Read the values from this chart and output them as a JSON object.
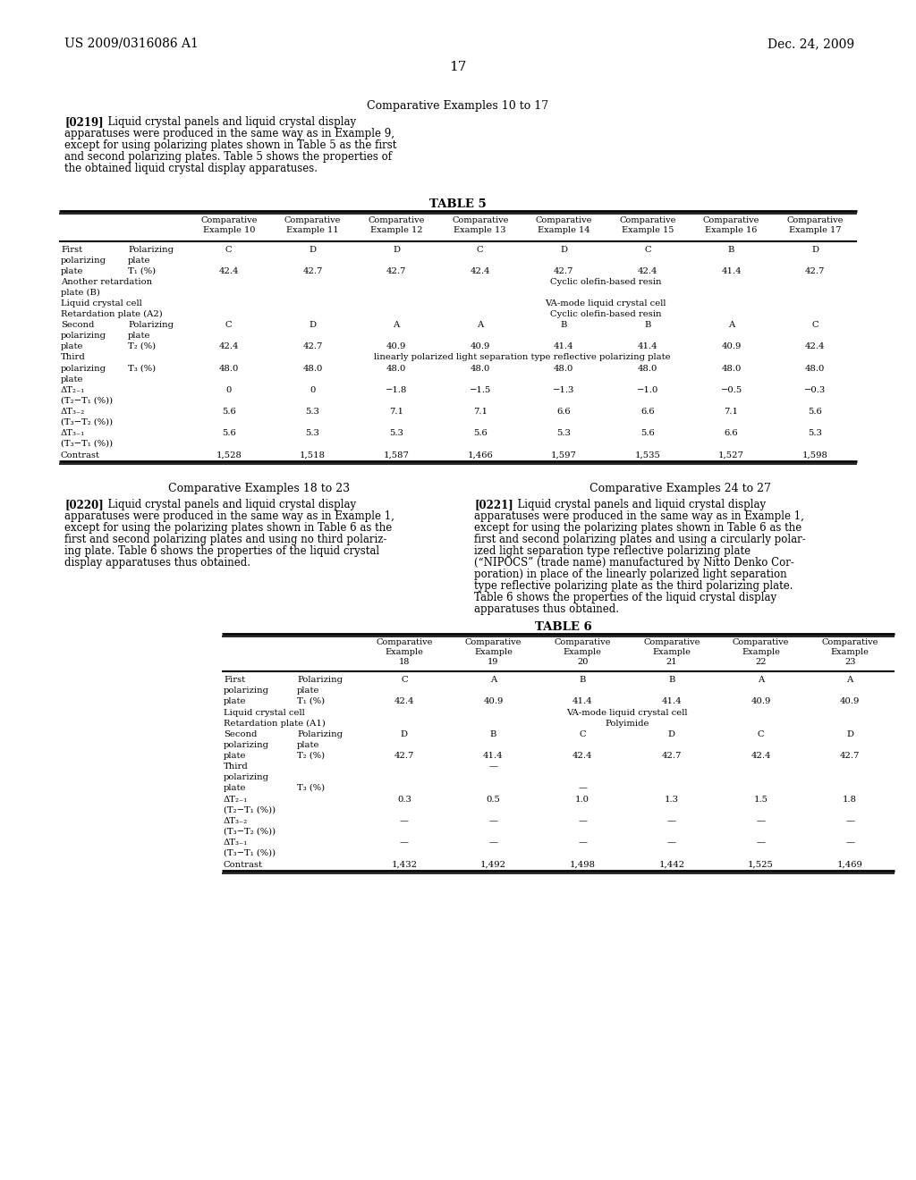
{
  "page_header_left": "US 2009/0316086 A1",
  "page_header_right": "Dec. 24, 2009",
  "page_number": "17",
  "section1_title": "Comparative Examples 10 to 17",
  "section1_para_tag": "[0219]",
  "section1_para_body": "  Liquid crystal panels and liquid crystal display\napparatuses were produced in the same way as in Example 9,\nexcept for using polarizing plates shown in Table 5 as the first\nand second polarizing plates. Table 5 shows the properties of\nthe obtained liquid crystal display apparatuses.",
  "table5_title": "TABLE 5",
  "table5_col_headers": [
    "",
    "",
    "Comparative\nExample 10",
    "Comparative\nExample 11",
    "Comparative\nExample 12",
    "Comparative\nExample 13",
    "Comparative\nExample 14",
    "Comparative\nExample 15",
    "Comparative\nExample 16",
    "Comparative\nExample 17"
  ],
  "section2_title_left": "Comparative Examples 18 to 23",
  "section2_title_right": "Comparative Examples 24 to 27",
  "section2_para_left_tag": "[0220]",
  "section2_para_left_body": "  Liquid crystal panels and liquid crystal display\napparatuses were produced in the same way as in Example 1,\nexcept for using the polarizing plates shown in Table 6 as the\nfirst and second polarizing plates and using no third polariz-\ning plate. Table 6 shows the properties of the liquid crystal\ndisplay apparatuses thus obtained.",
  "section2_para_right_tag": "[0221]",
  "section2_para_right_body": "  Liquid crystal panels and liquid crystal display\napparatuses were produced in the same way as in Example 1,\nexcept for using the polarizing plates shown in Table 6 as the\nfirst and second polarizing plates and using a circularly polar-\nized light separation type reflective polarizing plate\n(“NIPOCS” (trade name) manufactured by Nitto Denko Cor-\nporation) in place of the linearly polarized light separation\ntype reflective polarizing plate as the third polarizing plate.\nTable 6 shows the properties of the liquid crystal display\napparatuses thus obtained.",
  "table6_title": "TABLE 6",
  "table6_col_headers": [
    "",
    "",
    "Comparative\nExample\n18",
    "Comparative\nExample\n19",
    "Comparative\nExample\n20",
    "Comparative\nExample\n21",
    "Comparative\nExample\n22",
    "Comparative\nExample\n23"
  ],
  "bg_color": "#ffffff",
  "text_color": "#000000"
}
